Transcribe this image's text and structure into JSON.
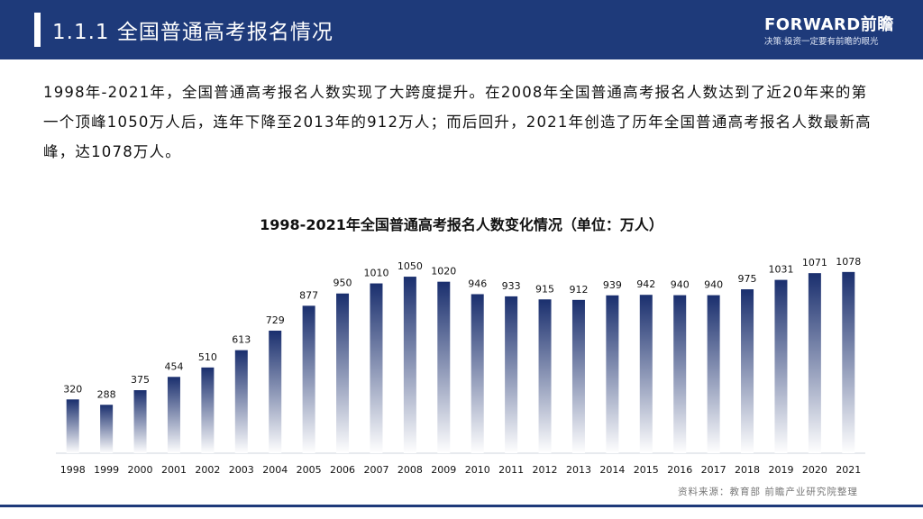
{
  "header": {
    "title": "1.1.1 全国普通高考报名情况",
    "logo": "FORWARD前瞻",
    "slogan": "决策·投资一定要有前瞻的眼光"
  },
  "intro": "1998年-2021年，全国普通高考报名人数实现了大跨度提升。在2008年全国普通高考报名人数达到了近20年来的第一个顶峰1050万人后，连年下降至2013年的912万人；而后回升，2021年创造了历年全国普通高考报名人数最新高峰，达1078万人。",
  "colors": {
    "brand": "#1e3a7a",
    "bar_top": "#1a2f6e",
    "bar_bottom": "#ffffff"
  },
  "chart_data": {
    "type": "bar",
    "title": "1998-2021年全国普通高考报名人数变化情况（单位：万人）",
    "categories": [
      "1998",
      "1999",
      "2000",
      "2001",
      "2002",
      "2003",
      "2004",
      "2005",
      "2006",
      "2007",
      "2008",
      "2009",
      "2010",
      "2011",
      "2012",
      "2013",
      "2014",
      "2015",
      "2016",
      "2017",
      "2018",
      "2019",
      "2020",
      "2021"
    ],
    "values": [
      320,
      288,
      375,
      454,
      510,
      613,
      729,
      877,
      950,
      1010,
      1050,
      1020,
      946,
      933,
      915,
      912,
      939,
      942,
      940,
      940,
      975,
      1031,
      1071,
      1078
    ],
    "xlabel": "",
    "ylabel": "",
    "grid": false,
    "legend": "none"
  },
  "source": "资料来源：教育部 前瞻产业研究院整理"
}
